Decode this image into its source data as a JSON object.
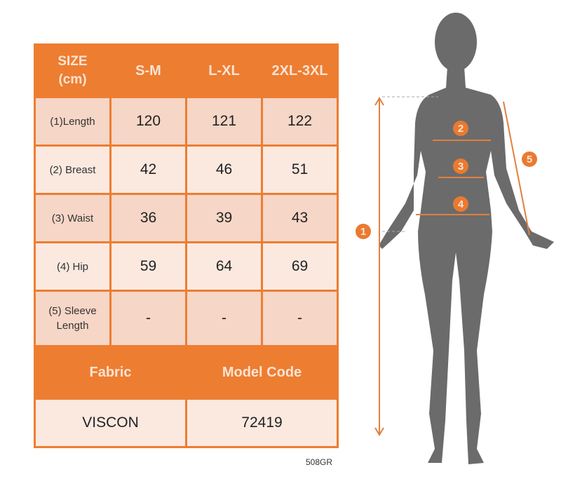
{
  "table": {
    "header": [
      "SIZE\n(cm)",
      "S-M",
      "L-XL",
      "2XL-3XL"
    ],
    "header_lines": [
      "SIZE",
      "(cm)"
    ],
    "rows": [
      {
        "label": "(1)Length",
        "values": [
          "120",
          "121",
          "122"
        ]
      },
      {
        "label": "(2) Breast",
        "values": [
          "42",
          "46",
          "51"
        ]
      },
      {
        "label": "(3) Waist",
        "values": [
          "36",
          "39",
          "43"
        ]
      },
      {
        "label": "(4) Hip",
        "values": [
          "59",
          "64",
          "69"
        ]
      },
      {
        "label_lines": [
          "(5) Sleeve",
          "Length"
        ],
        "values": [
          "-",
          "-",
          "-"
        ]
      }
    ],
    "footer_header": [
      "Fabric",
      "Model Code"
    ],
    "footer_values": [
      "VISCON",
      "72419"
    ]
  },
  "product_code": "508GR",
  "figure": {
    "markers": [
      "1",
      "2",
      "3",
      "4",
      "5"
    ]
  },
  "colors": {
    "accent": "#ed7d31",
    "row_dark": "#f6d6c7",
    "row_light": "#fbe9e0",
    "silhouette": "#6b6b6b"
  }
}
